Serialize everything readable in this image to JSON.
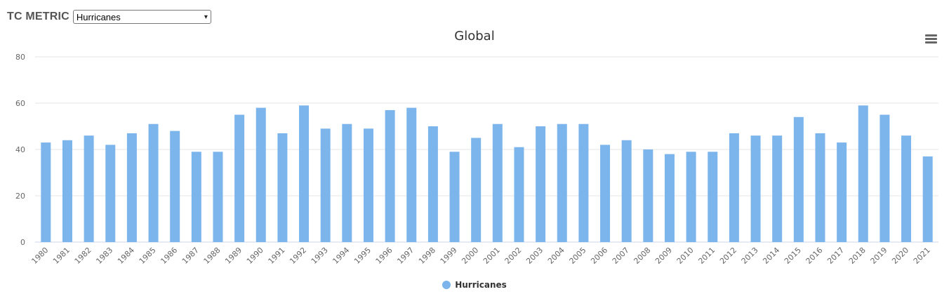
{
  "header": {
    "metric_label": "TC METRIC",
    "select_value": "Hurricanes"
  },
  "chart_data": {
    "type": "bar",
    "title": "Global",
    "xlabel": "",
    "ylabel": "",
    "ylim": [
      0,
      80
    ],
    "yticks": [
      0,
      20,
      40,
      60,
      80
    ],
    "grid": true,
    "legend_position": "bottom-center",
    "color": "#7cb5ec",
    "categories": [
      "1980",
      "1981",
      "1982",
      "1983",
      "1984",
      "1985",
      "1986",
      "1987",
      "1988",
      "1989",
      "1990",
      "1991",
      "1992",
      "1993",
      "1994",
      "1995",
      "1996",
      "1997",
      "1998",
      "1999",
      "2000",
      "2001",
      "2002",
      "2003",
      "2004",
      "2005",
      "2006",
      "2007",
      "2008",
      "2009",
      "2010",
      "2011",
      "2012",
      "2013",
      "2014",
      "2015",
      "2016",
      "2017",
      "2018",
      "2019",
      "2020",
      "2021"
    ],
    "series": [
      {
        "name": "Hurricanes",
        "values": [
          43,
          44,
          46,
          42,
          47,
          51,
          48,
          39,
          39,
          55,
          58,
          47,
          59,
          49,
          51,
          49,
          57,
          58,
          50,
          39,
          45,
          51,
          41,
          50,
          51,
          51,
          42,
          44,
          40,
          38,
          39,
          39,
          47,
          46,
          46,
          54,
          47,
          43,
          59,
          55,
          46,
          37
        ]
      }
    ]
  }
}
